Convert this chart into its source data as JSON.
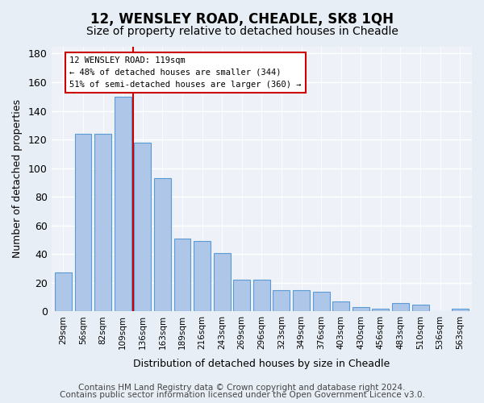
{
  "title": "12, WENSLEY ROAD, CHEADLE, SK8 1QH",
  "subtitle": "Size of property relative to detached houses in Cheadle",
  "xlabel": "Distribution of detached houses by size in Cheadle",
  "ylabel": "Number of detached properties",
  "categories": [
    "29sqm",
    "56sqm",
    "82sqm",
    "109sqm",
    "136sqm",
    "163sqm",
    "189sqm",
    "216sqm",
    "243sqm",
    "269sqm",
    "296sqm",
    "323sqm",
    "349sqm",
    "376sqm",
    "403sqm",
    "430sqm",
    "456sqm",
    "483sqm",
    "510sqm",
    "536sqm",
    "563sqm"
  ],
  "values": [
    27,
    124,
    124,
    150,
    118,
    93,
    51,
    49,
    41,
    22,
    22,
    15,
    15,
    14,
    7,
    3,
    2,
    6,
    5,
    0,
    2
  ],
  "bar_color": "#aec6e8",
  "bar_edge_color": "#5b9bd5",
  "vline_color": "#cc0000",
  "annotation_line1": "12 WENSLEY ROAD: 119sqm",
  "annotation_line2": "← 48% of detached houses are smaller (344)",
  "annotation_line3": "51% of semi-detached houses are larger (360) →",
  "annotation_box_edge_color": "#cc0000",
  "annotation_box_face_color": "#ffffff",
  "ylim": [
    0,
    185
  ],
  "yticks": [
    0,
    20,
    40,
    60,
    80,
    100,
    120,
    140,
    160,
    180
  ],
  "footer1": "Contains HM Land Registry data © Crown copyright and database right 2024.",
  "footer2": "Contains public sector information licensed under the Open Government Licence v3.0.",
  "bg_color": "#e8eef5",
  "plot_bg_color": "#eef2f8",
  "grid_color": "#ffffff",
  "title_fontsize": 12,
  "subtitle_fontsize": 10,
  "footer_fontsize": 7.5
}
